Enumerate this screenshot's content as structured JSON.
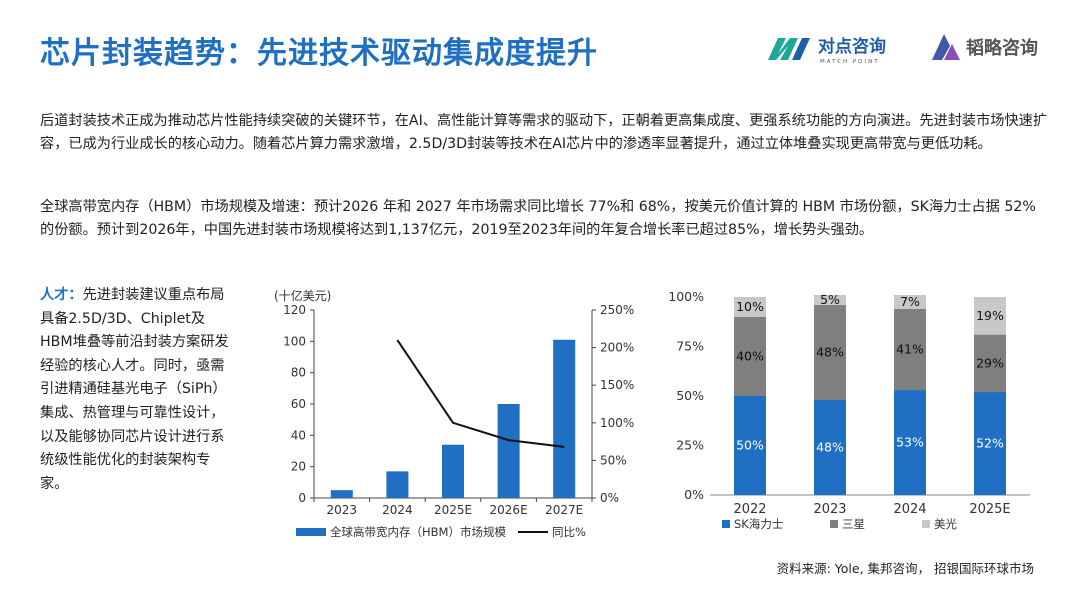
{
  "header": {
    "title": "芯片封装趋势：先进技术驱动集成度提升",
    "logo1_name": "对点咨询",
    "logo1_sub": "MATCH POINT",
    "logo2_name": "韬略咨询"
  },
  "body": {
    "para1": "后道封装技术正成为推动芯片性能持续突破的关键环节，在AI、高性能计算等需求的驱动下，正朝着更高集成度、更强系统功能的方向演进。先进封装市场快速扩容，已成为行业成长的核心动力。随着芯片算力需求激增，2.5D/3D封装等技术在AI芯片中的渗透率显著提升，通过立体堆叠实现更高带宽与更低功耗。",
    "para2": "全球高带宽内存（HBM）市场规模及增速：预计2026 年和 2027 年市场需求同比增长 77%和 68%，按美元价值计算的 HBM 市场份额，SK海力士占据 52%的份额。预计到2026年，中国先进封装市场规模将达到1,137亿元，2019至2023年间的年复合增长率已超过85%，增长势头强劲。",
    "talent_lead": "人才：",
    "talent_text": "先进封装建议重点布局具备2.5D/3D、Chiplet及HBM堆叠等前沿封装方案研发经验的核心人才。同时，亟需引进精通硅基光电子（SiPh）集成、热管理与可靠性设计，以及能够协同芯片设计进行系统级性能优化的封装架构专家。"
  },
  "chart_data": [
    {
      "type": "bar+line",
      "unit_label": "(十亿美元)",
      "categories": [
        "2023",
        "2024",
        "2025E",
        "2026E",
        "2027E"
      ],
      "series": [
        {
          "name": "全球高带宽内存（HBM）市场规模",
          "kind": "bar",
          "axis": "left",
          "values": [
            5,
            17,
            34,
            60,
            101
          ]
        },
        {
          "name": "同比%",
          "kind": "line",
          "axis": "right",
          "values": [
            null,
            210,
            100,
            77,
            68
          ]
        }
      ],
      "ylim_left": [
        0,
        120
      ],
      "yticks_left": [
        "0",
        "20",
        "40",
        "60",
        "80",
        "100",
        "120"
      ],
      "ylim_right": [
        0,
        250
      ],
      "yticks_right": [
        "0%",
        "50%",
        "100%",
        "150%",
        "200%",
        "250%"
      ],
      "colors": {
        "bar": "#1f6fc2",
        "line": "#111111"
      },
      "legend": "bottom"
    },
    {
      "type": "stacked-bar-100",
      "categories": [
        "2022",
        "2023",
        "2024",
        "2025E"
      ],
      "series": [
        {
          "name": "SK海力士",
          "values": [
            50,
            48,
            53,
            52
          ],
          "labels": [
            "50%",
            "48%",
            "53%",
            "52%"
          ],
          "color": "#1f6fc2"
        },
        {
          "name": "三星",
          "values": [
            40,
            48,
            41,
            29
          ],
          "labels": [
            "40%",
            "48%",
            "41%",
            "29%"
          ],
          "color": "#7f7f7f"
        },
        {
          "name": "美光",
          "values": [
            10,
            5,
            7,
            19
          ],
          "labels": [
            "10%",
            "5%",
            "7%",
            "19%"
          ],
          "color": "#c8c8c8"
        }
      ],
      "yticks": [
        "0%",
        "25%",
        "50%",
        "75%",
        "100%"
      ],
      "ylim": [
        0,
        100
      ],
      "legend": "bottom"
    }
  ],
  "footer": {
    "source": "资料来源: Yole, 集邦咨询， 招银国际环球市场"
  }
}
